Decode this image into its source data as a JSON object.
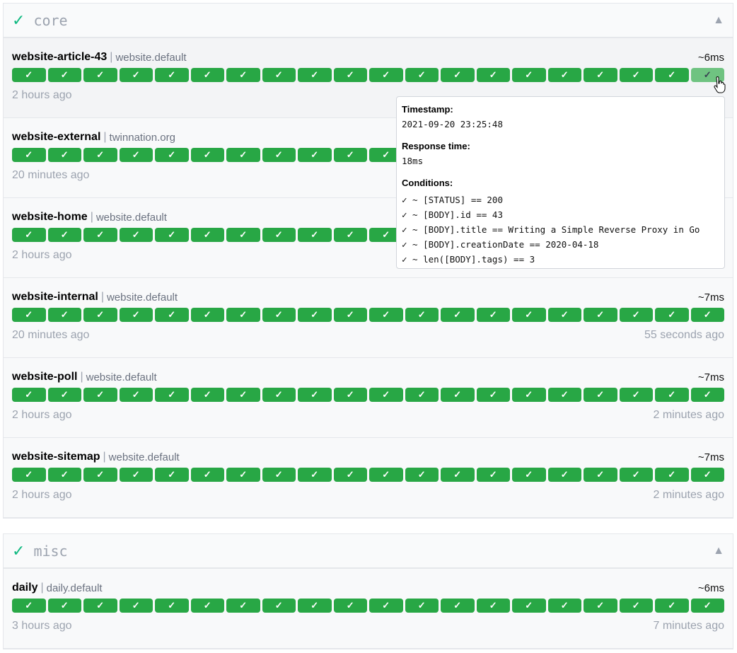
{
  "groups": [
    {
      "name": "core",
      "status_icon": "✓",
      "toggle": "▲",
      "endpoints": [
        {
          "name": "website-article-43",
          "group": "website.default",
          "response": "~6ms",
          "oldest": "2 hours ago",
          "newest": "",
          "hovered": true
        },
        {
          "name": "website-external",
          "group": "twinnation.org",
          "response": "",
          "oldest": "20 minutes ago",
          "newest": ""
        },
        {
          "name": "website-home",
          "group": "website.default",
          "response": "",
          "oldest": "2 hours ago",
          "newest": ""
        },
        {
          "name": "website-internal",
          "group": "website.default",
          "response": "~7ms",
          "oldest": "20 minutes ago",
          "newest": "55 seconds ago"
        },
        {
          "name": "website-poll",
          "group": "website.default",
          "response": "~7ms",
          "oldest": "2 hours ago",
          "newest": "2 minutes ago"
        },
        {
          "name": "website-sitemap",
          "group": "website.default",
          "response": "~7ms",
          "oldest": "2 hours ago",
          "newest": "2 minutes ago"
        }
      ]
    },
    {
      "name": "misc",
      "status_icon": "✓",
      "toggle": "▲",
      "endpoints": [
        {
          "name": "daily",
          "group": "daily.default",
          "response": "~6ms",
          "oldest": "3 hours ago",
          "newest": "7 minutes ago"
        }
      ]
    }
  ],
  "bar_count": 20,
  "bar_symbol": "✓",
  "colors": {
    "success": "#28a745",
    "hovered": "#6fc381"
  },
  "tooltip": {
    "timestamp_label": "Timestamp:",
    "timestamp": "2021-09-20 23:25:48",
    "response_label": "Response time:",
    "response": "18ms",
    "conditions_label": "Conditions:",
    "conditions": [
      "✓ ~ [STATUS] == 200",
      "✓ ~ [BODY].id == 43",
      "✓ ~ [BODY].title == Writing a Simple Reverse Proxy in Go",
      "✓ ~ [BODY].creationDate == 2020-04-18",
      "✓ ~ len([BODY].tags) == 3"
    ]
  }
}
